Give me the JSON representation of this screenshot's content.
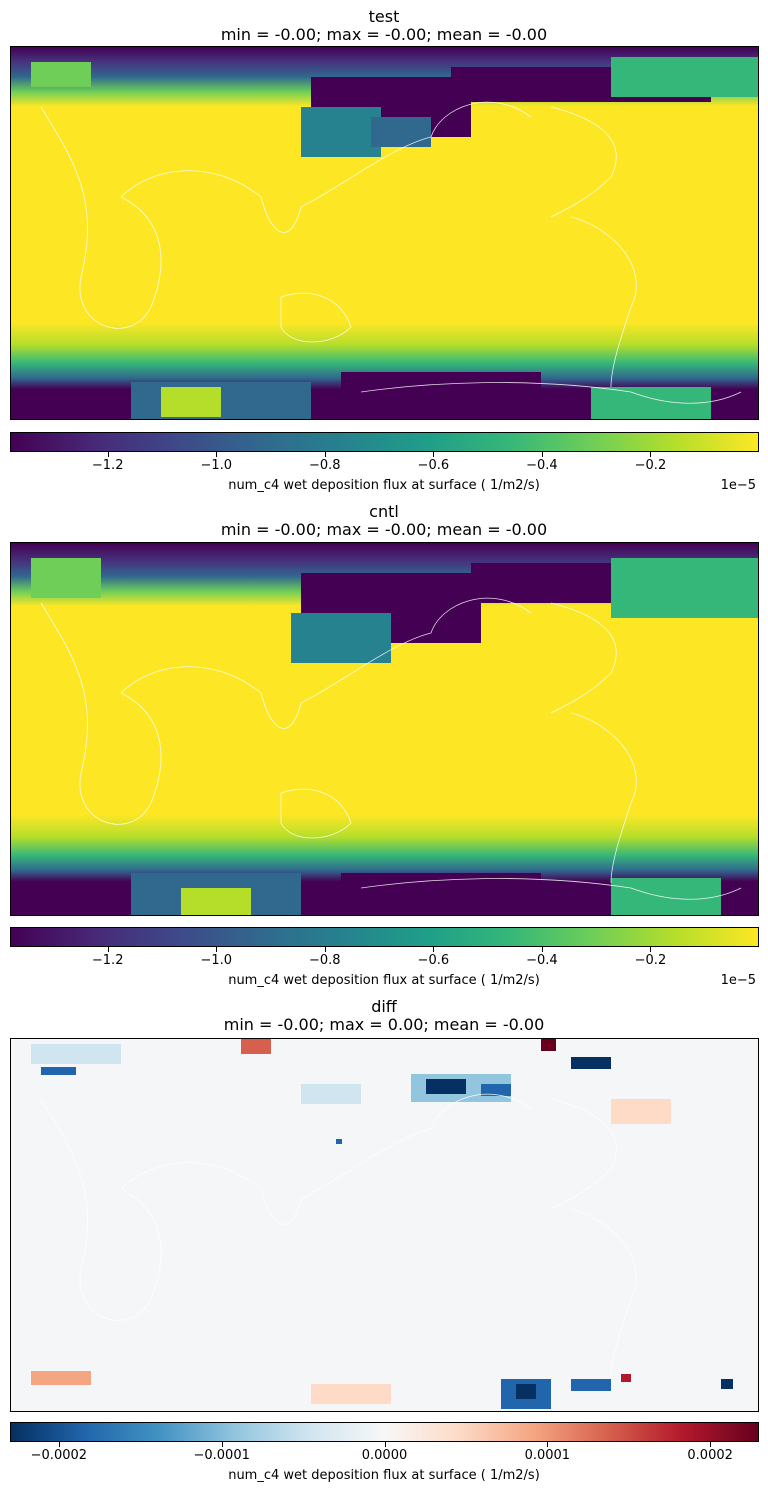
{
  "chart_data": [
    {
      "type": "heatmap",
      "title": "test",
      "subtitle": "min = -0.00; max = -0.00; mean = -0.00",
      "colormap": "viridis",
      "colorbar": {
        "label": "num_c4 wet deposition flux at surface ( 1/m2/s)",
        "offset_text": "1e−5",
        "range": [
          -1.38,
          0.0
        ],
        "ticks": [
          -1.2,
          -1.0,
          -0.8,
          -0.6,
          -0.4,
          -0.2
        ],
        "tick_labels": [
          "−1.2",
          "−1.0",
          "−0.8",
          "−0.6",
          "−0.4",
          "−0.2"
        ]
      },
      "pattern": "near-zero (yellow) over tropics and mid-latitudes; strongly negative (purple) bands at high latitudes, especially Arctic and Antarctic"
    },
    {
      "type": "heatmap",
      "title": "cntl",
      "subtitle": "min = -0.00; max = -0.00; mean = -0.00",
      "colormap": "viridis",
      "colorbar": {
        "label": "num_c4 wet deposition flux at surface ( 1/m2/s)",
        "offset_text": "1e−5",
        "range": [
          -1.38,
          0.0
        ],
        "ticks": [
          -1.2,
          -1.0,
          -0.8,
          -0.6,
          -0.4,
          -0.2
        ],
        "tick_labels": [
          "−1.2",
          "−1.0",
          "−0.8",
          "−0.6",
          "−0.4",
          "−0.2"
        ]
      },
      "pattern": "near-zero (yellow) over tropics and mid-latitudes; strongly negative (purple) bands at high latitudes"
    },
    {
      "type": "heatmap",
      "title": "diff",
      "subtitle": "min = -0.00; max = 0.00; mean = -0.00",
      "colormap": "RdBu_r",
      "colorbar": {
        "label": "num_c4 wet deposition flux at surface ( 1/m2/s)",
        "offset_text": "",
        "range": [
          -0.00023,
          0.00023
        ],
        "ticks": [
          -0.0002,
          -0.0001,
          0.0,
          0.0001,
          0.0002
        ],
        "tick_labels": [
          "−0.0002",
          "−0.0001",
          "0.0000",
          "0.0001",
          "0.0002"
        ]
      },
      "pattern": "mostly near-zero (white); scattered blue and red patches in northern high latitudes and near Antarctica"
    }
  ],
  "colors": {
    "viridis": [
      "#440154",
      "#482878",
      "#3e4989",
      "#31688e",
      "#26828e",
      "#1f9e89",
      "#35b779",
      "#6ece58",
      "#b5de2b",
      "#fde725"
    ],
    "rdbu_r": [
      "#053061",
      "#2166ac",
      "#4393c3",
      "#92c5de",
      "#d1e5f0",
      "#f7f7f7",
      "#fddbc7",
      "#f4a582",
      "#d6604d",
      "#b2182b",
      "#67001f"
    ]
  }
}
